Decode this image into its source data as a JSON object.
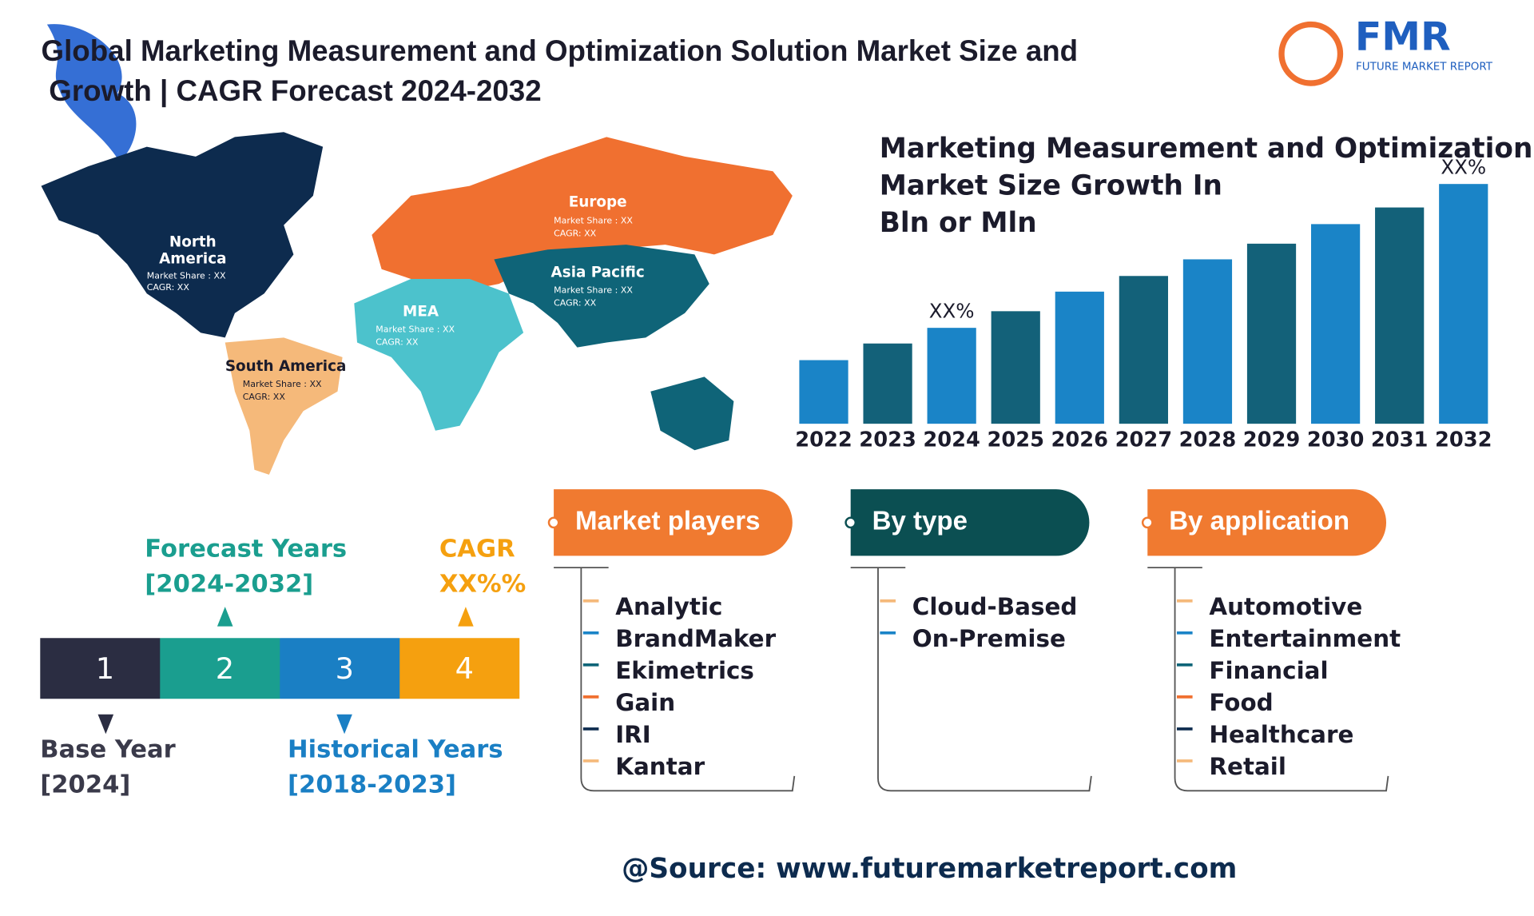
{
  "header": {
    "title_lines": [
      "Global Marketing Measurement and Optimization Solution Market Size and",
      "Growth | CAGR Forecast 2024-2032"
    ]
  },
  "logo": {
    "name": "FMR",
    "tagline": "FUTURE MARKET REPORT"
  },
  "map": {
    "regions": [
      {
        "name_lines": [
          "North",
          "America"
        ],
        "share": "Market Share : XX",
        "cagr": "CAGR: XX"
      },
      {
        "name_lines": [
          "South America"
        ],
        "share": "Market Share : XX",
        "cagr": "CAGR: XX"
      },
      {
        "name_lines": [
          "Europe"
        ],
        "share": "Market Share : XX",
        "cagr": "CAGR: XX"
      },
      {
        "name_lines": [
          "MEA"
        ],
        "share": "Market Share : XX",
        "cagr": "CAGR: XX"
      },
      {
        "name_lines": [
          "Asia Pacific"
        ],
        "share": "Market Share : XX",
        "cagr": "CAGR: XX"
      }
    ]
  },
  "chart_data": {
    "type": "bar",
    "title_lines": [
      "Marketing Measurement and Optimization Solution",
      "Market Size Growth In",
      "Bln or Mln"
    ],
    "categories": [
      "2022",
      "2023",
      "2024",
      "2025",
      "2026",
      "2027",
      "2028",
      "2029",
      "2030",
      "2031",
      "2032"
    ],
    "values": [
      65,
      82,
      98,
      115,
      135,
      151,
      168,
      184,
      204,
      221,
      245
    ],
    "colors": [
      "#1a84c7",
      "#136179",
      "#1a84c7",
      "#136179",
      "#1a84c7",
      "#136179",
      "#1a84c7",
      "#136179",
      "#1a84c7",
      "#136179",
      "#1a84c7"
    ],
    "bar_labels": [
      null,
      null,
      "XX%",
      null,
      null,
      null,
      null,
      null,
      null,
      null,
      "XX%"
    ]
  },
  "timeline": {
    "steps": [
      "1",
      "2",
      "3",
      "4"
    ],
    "forecast": {
      "label": "Forecast Years",
      "range": "[2024-2032]"
    },
    "cagr": {
      "label": "CAGR",
      "value": "XX%%"
    },
    "base": {
      "label": "Base Year",
      "range": "[2024]"
    },
    "historical": {
      "label": "Historical Years",
      "range": "[2018-2023]"
    }
  },
  "segments": [
    {
      "title": "Market players",
      "items": [
        "Analytic",
        "BrandMaker",
        "Ekimetrics",
        "Gain",
        "IRI",
        "Kantar"
      ]
    },
    {
      "title": "By type",
      "items": [
        "Cloud-Based",
        "On-Premise"
      ]
    },
    {
      "title": "By application",
      "items": [
        "Automotive",
        "Entertainment",
        "Financial",
        "Food",
        "Healthcare",
        "Retail"
      ]
    }
  ],
  "source": "@Source: www.futuremarketreport.com"
}
